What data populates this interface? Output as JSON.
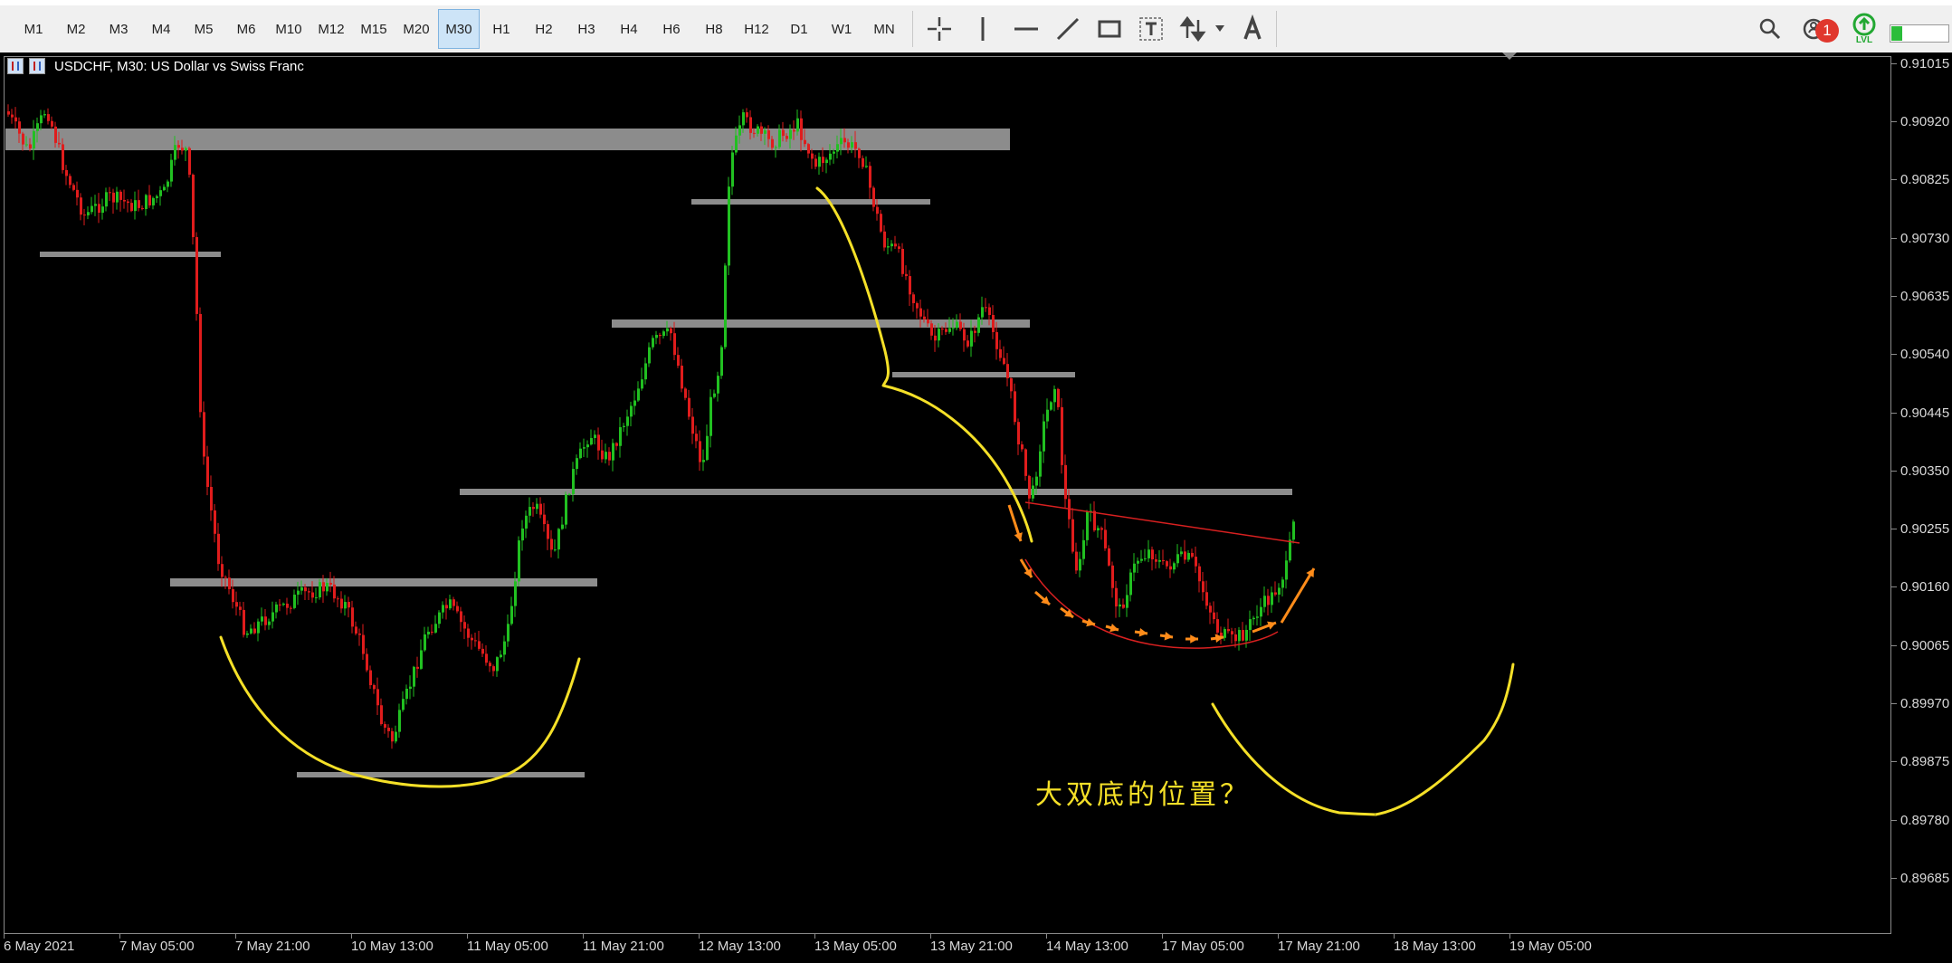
{
  "toolbar": {
    "timeframes": [
      "M1",
      "M2",
      "M3",
      "M4",
      "M5",
      "M6",
      "M10",
      "M12",
      "M15",
      "M20",
      "M30",
      "H1",
      "H2",
      "H3",
      "H4",
      "H6",
      "H8",
      "H12",
      "D1",
      "W1",
      "MN"
    ],
    "active_timeframe": "M30",
    "tools": [
      "crosshair-icon",
      "vertical-line-icon",
      "horizontal-line-icon",
      "trend-line-icon",
      "rectangle-icon",
      "text-label-icon",
      "arrows-icon",
      "text-icon"
    ],
    "notification_count": "1",
    "level_label": "LVL",
    "meter_level": 0.2
  },
  "chart": {
    "title": "USDCHF, M30:  US Dollar vs Swiss Franc",
    "price_axis": [
      "0.91015",
      "0.90920",
      "0.90825",
      "0.90730",
      "0.90635",
      "0.90540",
      "0.90445",
      "0.90350",
      "0.90255",
      "0.90160",
      "0.90065",
      "0.89970",
      "0.89875",
      "0.89780",
      "0.89685"
    ],
    "time_axis": [
      "6 May 2021",
      "7 May 05:00",
      "7 May 21:00",
      "10 May 13:00",
      "11 May 05:00",
      "11 May 21:00",
      "12 May 13:00",
      "13 May 05:00",
      "13 May 21:00",
      "14 May 13:00",
      "17 May 05:00",
      "17 May 21:00",
      "18 May 13:00",
      "19 May 05:00"
    ],
    "annotation": "大双底的位置？",
    "colors": {
      "bull": "#21c021",
      "bear": "#e01c1c",
      "zone": "#8c8c8c",
      "drawing": "#f5e028",
      "arrows": "#ff8c1a"
    }
  }
}
